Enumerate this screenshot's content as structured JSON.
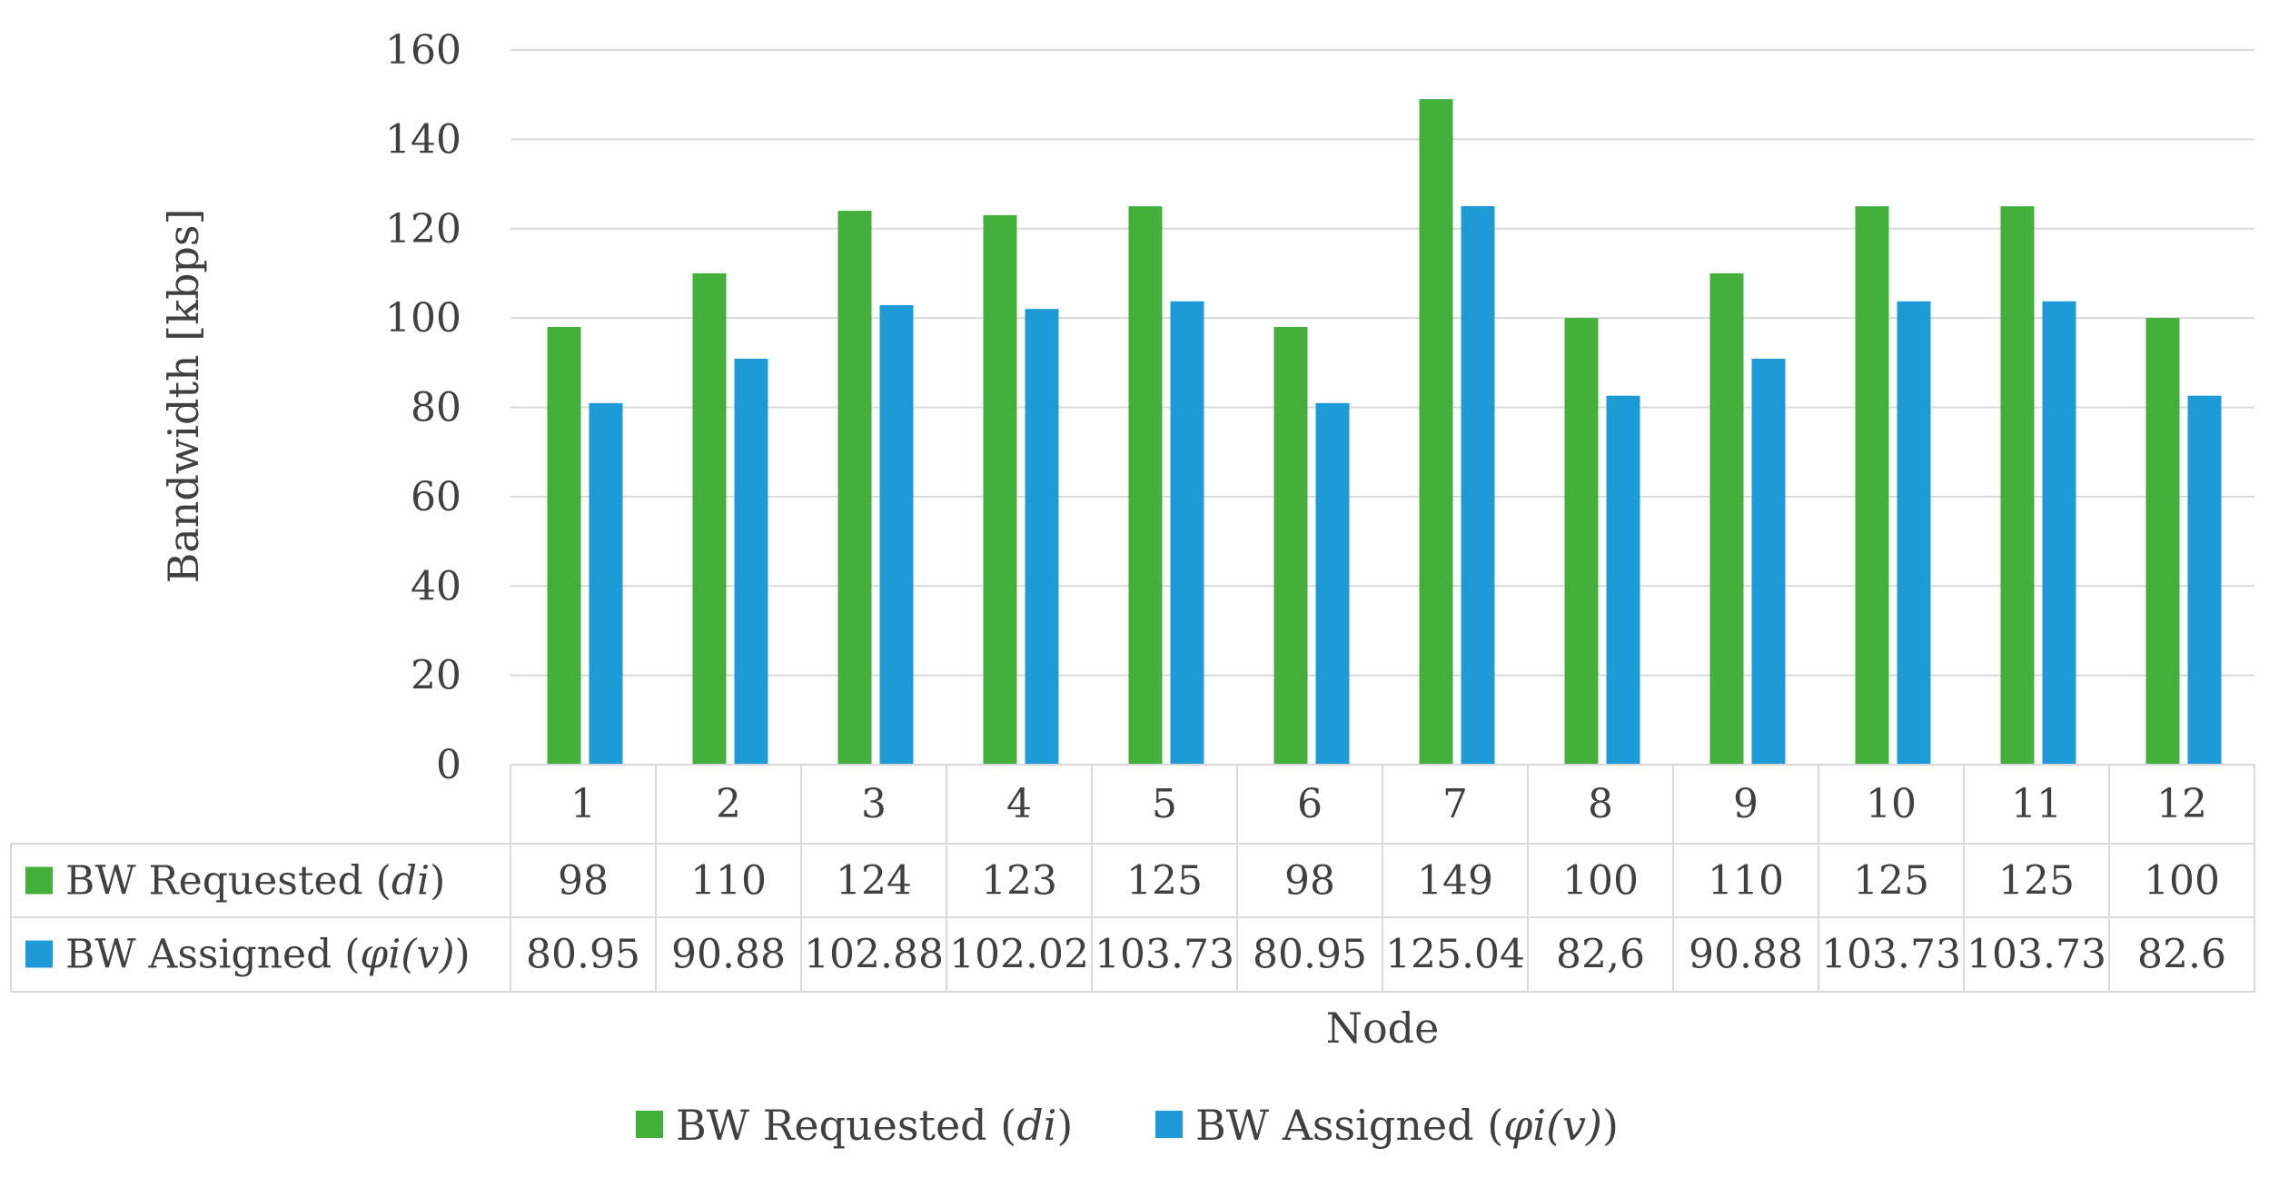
{
  "chart_data": {
    "type": "bar",
    "ylabel": "Bandwidth [kbps]",
    "xlabel": "Node",
    "ylim": [
      0,
      160
    ],
    "yticks": [
      "0",
      "20",
      "40",
      "60",
      "80",
      "100",
      "120",
      "140",
      "160"
    ],
    "grid": true,
    "legend_position": "bottom",
    "categories": [
      "1",
      "2",
      "3",
      "4",
      "5",
      "6",
      "7",
      "8",
      "9",
      "10",
      "11",
      "12"
    ],
    "series": [
      {
        "name": "BW Requested (di)",
        "label_prefix": "BW Requested (",
        "label_symbol": "di",
        "label_suffix": ")",
        "color": "#43B03C",
        "values": [
          98,
          110,
          124,
          123,
          125,
          98,
          149,
          100,
          110,
          125,
          125,
          100
        ],
        "table_labels": [
          "98",
          "110",
          "124",
          "123",
          "125",
          "98",
          "149",
          "100",
          "110",
          "125",
          "125",
          "100"
        ]
      },
      {
        "name": "BW Assigned (φi(v))",
        "label_prefix": "BW Assigned (",
        "label_symbol": "φi(v)",
        "label_suffix": ")",
        "color": "#1E9BD7",
        "values": [
          80.95,
          90.88,
          102.88,
          102.02,
          103.73,
          80.95,
          125.04,
          82.6,
          90.88,
          103.73,
          103.73,
          82.6
        ],
        "table_labels": [
          "80.95",
          "90.88",
          "102.88",
          "102.02",
          "103.73",
          "80.95",
          "125.04",
          "82,6",
          "90.88",
          "103.73",
          "103.73",
          "82.6"
        ]
      }
    ]
  }
}
